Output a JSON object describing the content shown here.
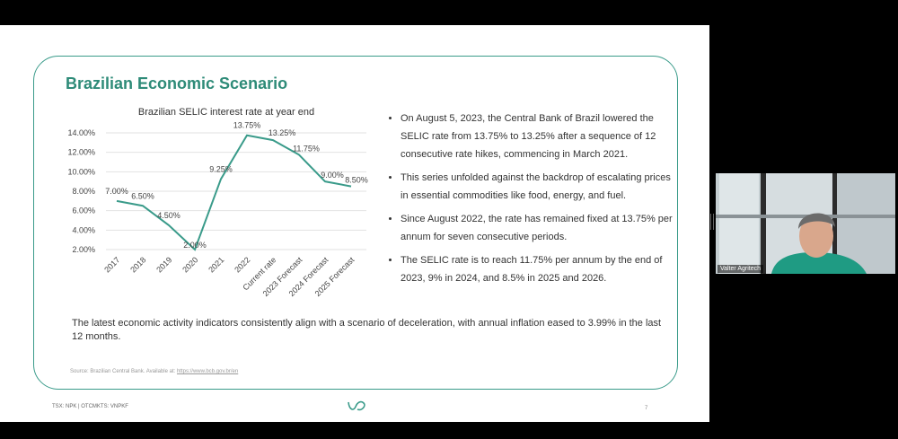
{
  "slide": {
    "title": "Brazilian Economic Scenario",
    "bullets": [
      "On August 5, 2023, the Central Bank of Brazil lowered the SELIC rate from 13.75% to 13.25% after a sequence of 12 consecutive rate hikes, commencing in March 2021.",
      "This series unfolded against the backdrop of escalating prices in essential commodities like food, energy, and fuel.",
      "Since August 2022, the rate has remained fixed at 13.75% per annum for seven consecutive periods.",
      "The SELIC rate is to reach 11.75% per annum by the end of 2023, 9% in 2024, and 8.5% in 2025 and 2026."
    ],
    "summary": "The latest economic activity indicators consistently align with a scenario of deceleration, with annual inflation eased to 3.99% in the last 12 months.",
    "source_prefix": "Source: Brazilian Central Bank. Available at: ",
    "source_link": "https://www.bcb.gov.br/en",
    "footer_left": "TSX: NPK | OTCMKTS: VNPKF",
    "page_number": "7",
    "logo_icon": "brand-logo-icon"
  },
  "chart_data": {
    "type": "line",
    "title": "Brazilian SELIC interest rate at year end",
    "categories": [
      "2017",
      "2018",
      "2019",
      "2020",
      "2021",
      "2022",
      "Current rate",
      "2023 Forecast",
      "2024 Forecast",
      "2025 Forecast"
    ],
    "values": [
      7.0,
      6.5,
      4.5,
      2.0,
      9.25,
      13.75,
      13.25,
      11.75,
      9.0,
      8.5
    ],
    "data_labels": [
      "7.00%",
      "6.50%",
      "4.50%",
      "2.00%",
      "9.25%",
      "13.75%",
      "13.25%",
      "11.75%",
      "9.00%",
      "8.50%"
    ],
    "yticks": [
      "2.00%",
      "4.00%",
      "6.00%",
      "8.00%",
      "10.00%",
      "12.00%",
      "14.00%"
    ],
    "ytick_values": [
      2,
      4,
      6,
      8,
      10,
      12,
      14
    ],
    "ylim": [
      2,
      14
    ],
    "grid": true,
    "line_color": "#3a9b8a"
  },
  "video": {
    "participant_name": "Valter Agritech"
  }
}
